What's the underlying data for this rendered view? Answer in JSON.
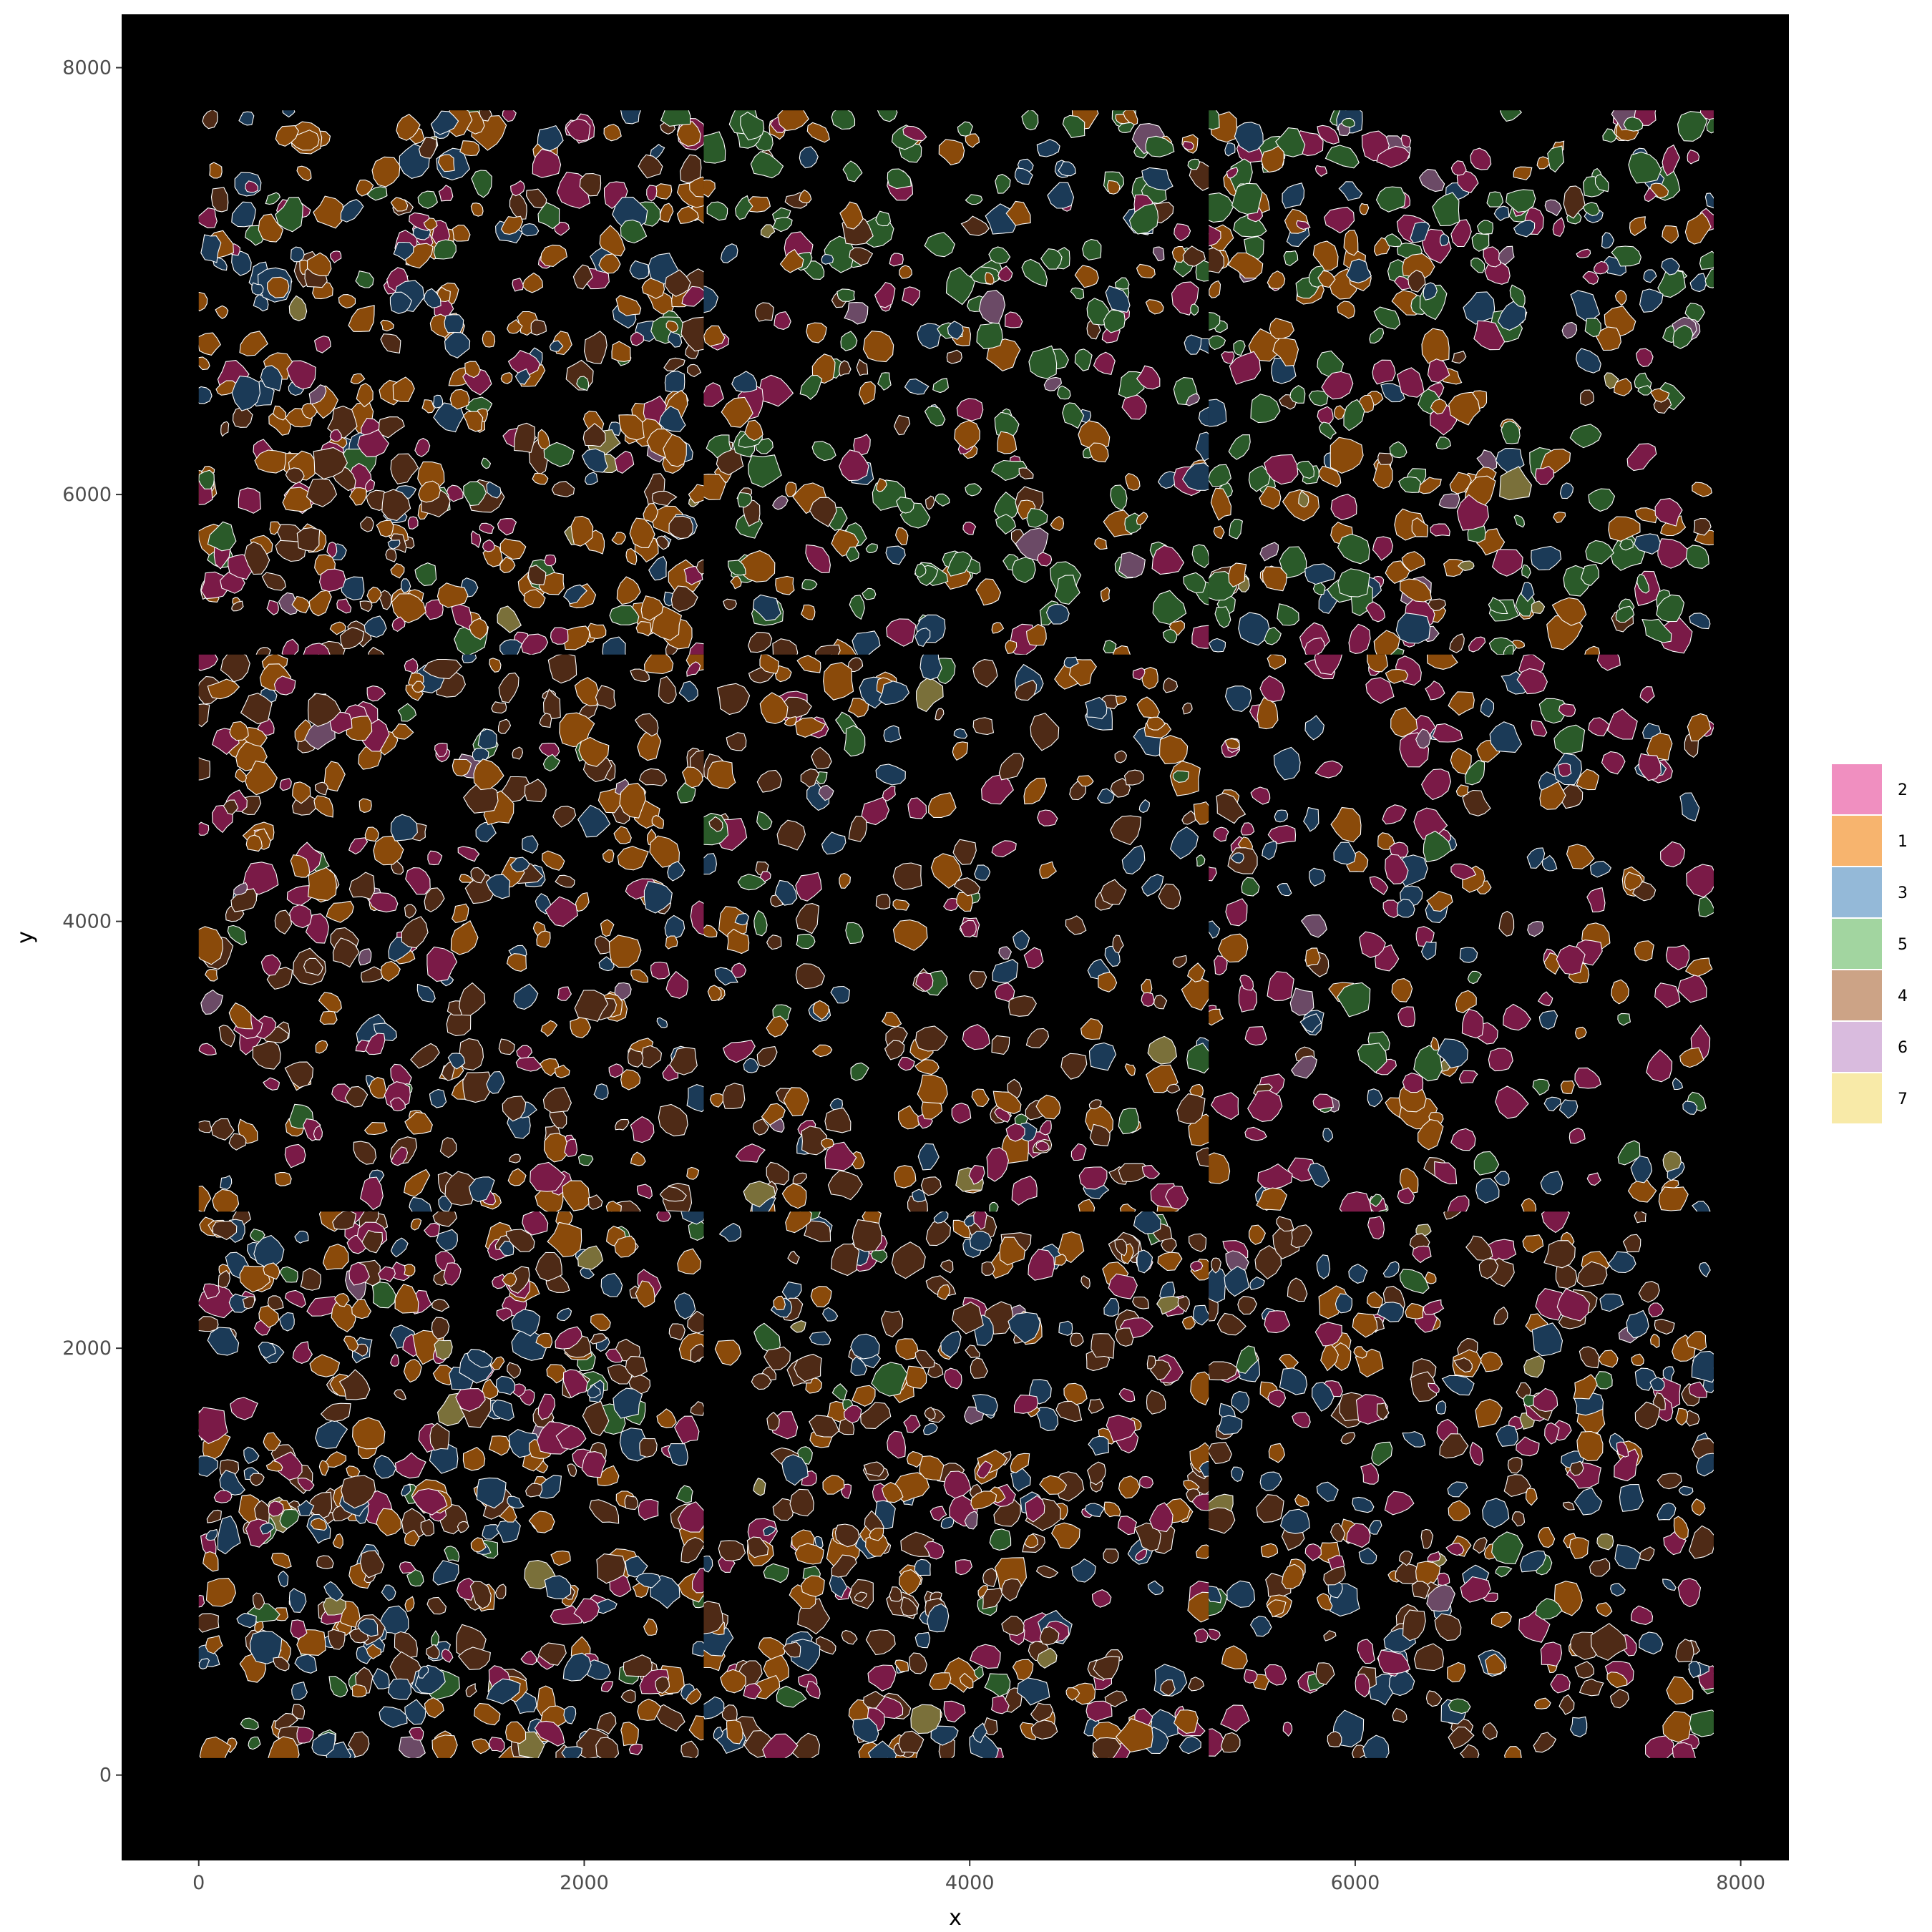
{
  "chart_data": {
    "type": "scatter",
    "subtype": "cell-segmentation-polygons",
    "xlabel": "x",
    "ylabel": "y",
    "xlim": [
      -400,
      8250
    ],
    "ylim": [
      -400,
      8250
    ],
    "x_ticks": [
      0,
      2000,
      4000,
      6000,
      8000
    ],
    "y_ticks": [
      0,
      2000,
      4000,
      6000,
      8000
    ],
    "x_tick_labels": [
      "0",
      "2000",
      "4000",
      "6000",
      "8000"
    ],
    "y_tick_labels": [
      "0",
      "2000",
      "4000",
      "6000",
      "8000"
    ],
    "panel_background": "#000000",
    "outline_color": "#ffffff",
    "grid": false,
    "legend": {
      "placement": "right",
      "entries": [
        {
          "label": "2",
          "color": "#F08FC0",
          "fill": "#7A1A47"
        },
        {
          "label": "1",
          "color": "#F7B46E",
          "fill": "#8A4A0A"
        },
        {
          "label": "3",
          "color": "#94B9D8",
          "fill": "#1B3A57"
        },
        {
          "label": "5",
          "color": "#A2D5A0",
          "fill": "#2A5A29"
        },
        {
          "label": "4",
          "color": "#CCA386",
          "fill": "#4E2A16"
        },
        {
          "label": "6",
          "color": "#D9BBDE",
          "fill": "#6B4A66"
        },
        {
          "label": "7",
          "color": "#F8EAA8",
          "fill": "#7A703A"
        }
      ]
    },
    "fov_tiles": [
      {
        "x": [
          0,
          2620
        ],
        "y": [
          5250,
          7800
        ]
      },
      {
        "x": [
          2620,
          5240
        ],
        "y": [
          5250,
          7800
        ]
      },
      {
        "x": [
          5240,
          7860
        ],
        "y": [
          5250,
          7800
        ]
      },
      {
        "x": [
          0,
          2620
        ],
        "y": [
          2640,
          5250
        ]
      },
      {
        "x": [
          2620,
          5240
        ],
        "y": [
          2640,
          5250
        ]
      },
      {
        "x": [
          5240,
          7860
        ],
        "y": [
          2640,
          5250
        ]
      },
      {
        "x": [
          0,
          2620
        ],
        "y": [
          80,
          2640
        ]
      },
      {
        "x": [
          2620,
          5240
        ],
        "y": [
          80,
          2640
        ]
      },
      {
        "x": [
          5240,
          7860
        ],
        "y": [
          80,
          2640
        ]
      }
    ],
    "cluster_density": {
      "note": "approximate relative frequency of each cluster per tile (rows = tiles in order above)",
      "weights": [
        {
          "2": 3,
          "1": 5,
          "3": 2,
          "5": 1,
          "4": 2,
          "6": 0.2,
          "7": 0.2
        },
        {
          "2": 1.5,
          "1": 3,
          "3": 2,
          "5": 5,
          "4": 1,
          "6": 0.3,
          "7": 0.1
        },
        {
          "2": 3,
          "1": 3,
          "3": 2,
          "5": 5,
          "4": 0.5,
          "6": 0.5,
          "7": 0.3
        },
        {
          "2": 3,
          "1": 4,
          "3": 2,
          "5": 0.5,
          "4": 5,
          "6": 0.2,
          "7": 0.1
        },
        {
          "2": 2,
          "1": 4,
          "3": 2,
          "5": 1,
          "4": 4,
          "6": 0.1,
          "7": 0.2
        },
        {
          "2": 4,
          "1": 3,
          "3": 3,
          "5": 1,
          "4": 1,
          "6": 0.3,
          "7": 0.2
        },
        {
          "2": 3,
          "1": 4,
          "3": 4,
          "5": 1,
          "4": 4,
          "6": 0.2,
          "7": 0.4
        },
        {
          "2": 2,
          "1": 4,
          "3": 3,
          "5": 0.5,
          "4": 5,
          "6": 0.1,
          "7": 0.3
        },
        {
          "2": 3,
          "1": 3,
          "3": 3,
          "5": 0.5,
          "4": 5,
          "6": 0.1,
          "7": 0.3
        }
      ]
    },
    "cells_per_tile": [
      420,
      300,
      360,
      330,
      260,
      230,
      460,
      380,
      330
    ]
  }
}
